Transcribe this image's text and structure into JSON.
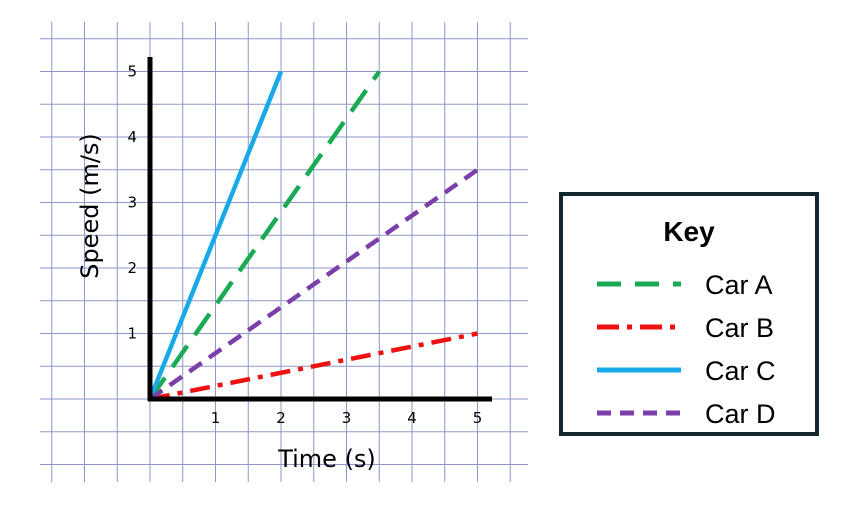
{
  "chart_data": {
    "type": "line",
    "xlabel": "Time (s)",
    "ylabel": "Speed (m/s)",
    "xlim": [
      0,
      5
    ],
    "ylim": [
      0,
      5
    ],
    "x_ticks": [
      "1",
      "2",
      "3",
      "4",
      "5"
    ],
    "y_ticks": [
      "1",
      "2",
      "3",
      "4",
      "5"
    ],
    "grid": true,
    "legend_title": "Key",
    "legend_position": "right",
    "series": [
      {
        "name": "Car A",
        "color": "#1aaa55",
        "style": "long-dash",
        "points": [
          [
            0,
            0
          ],
          [
            3.5,
            5
          ]
        ]
      },
      {
        "name": "Car B",
        "color": "#ee1111",
        "style": "dash-dot",
        "points": [
          [
            0,
            0
          ],
          [
            5,
            1
          ]
        ]
      },
      {
        "name": "Car C",
        "color": "#19a8e8",
        "style": "solid",
        "points": [
          [
            0,
            0
          ],
          [
            2,
            5
          ]
        ]
      },
      {
        "name": "Car D",
        "color": "#7a3fa8",
        "style": "short-dash",
        "points": [
          [
            0,
            0
          ],
          [
            5,
            3.5
          ]
        ]
      }
    ]
  }
}
